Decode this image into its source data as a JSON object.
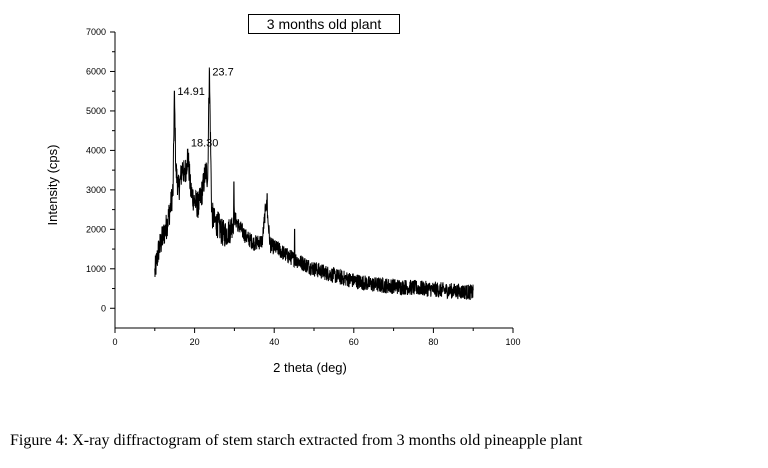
{
  "caption": "Figure 4:  X-ray diffractogram of stem starch extracted from 3 months old pineapple plant",
  "chart_data": {
    "type": "line",
    "title": "3 months old plant",
    "xlabel": "2 theta (deg)",
    "ylabel": "Intensity (cps)",
    "xlim": [
      0,
      100
    ],
    "ylim": [
      -500,
      7000
    ],
    "xticks": [
      0,
      20,
      40,
      60,
      80,
      100
    ],
    "yticks": [
      0,
      1000,
      2000,
      3000,
      4000,
      5000,
      6000,
      7000
    ],
    "grid": false,
    "legend": "none",
    "line_color": "#000000",
    "annotations": [
      {
        "text": "14.91",
        "x": 14.91,
        "y": 5400
      },
      {
        "text": "18.30",
        "x": 18.3,
        "y": 4100
      },
      {
        "text": "23.7",
        "x": 23.7,
        "y": 5900
      }
    ],
    "series": [
      {
        "x": [
          10,
          11,
          12,
          13,
          14,
          14.6,
          14.91,
          15.3,
          16,
          17,
          17.5,
          18.3,
          19,
          20,
          21,
          22,
          22.8,
          23.3,
          23.7,
          24.3,
          25,
          26,
          27,
          28,
          29,
          30,
          31,
          33,
          35,
          37,
          38,
          39,
          41,
          43,
          45,
          47,
          50,
          53,
          56,
          60,
          65,
          70,
          75,
          80,
          85,
          90
        ],
        "y": [
          900,
          1500,
          1800,
          2100,
          2600,
          3000,
          5500,
          3500,
          3000,
          3600,
          3300,
          3900,
          3000,
          2700,
          2600,
          3000,
          3500,
          3300,
          6100,
          2400,
          2200,
          2100,
          1900,
          1900,
          2000,
          2300,
          2100,
          1800,
          1650,
          1700,
          2700,
          1600,
          1500,
          1350,
          1250,
          1150,
          1000,
          900,
          800,
          700,
          600,
          560,
          520,
          480,
          440,
          400
        ]
      }
    ]
  }
}
